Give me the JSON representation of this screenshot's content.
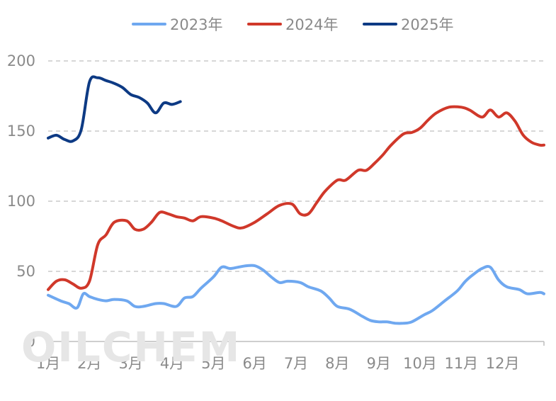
{
  "watermark": "OILCHEM",
  "chart_data": {
    "type": "line",
    "categories": [
      "1月",
      "2月",
      "3月",
      "4月",
      "5月",
      "6月",
      "7月",
      "8月",
      "9月",
      "10月",
      "11月",
      "12月"
    ],
    "ylim": [
      0,
      200
    ],
    "yticks": [
      0,
      50,
      100,
      150,
      200
    ],
    "ytick_labels": [
      "0",
      "50",
      "100",
      "150",
      "200"
    ],
    "grid": true,
    "legend_position": "top",
    "x_unit": "month (1 = early January, 13 = end of December)",
    "series": [
      {
        "name": "2023年",
        "color": "#6fa8f0",
        "x": [
          1.0,
          1.3,
          1.5,
          1.7,
          1.85,
          2.0,
          2.2,
          2.4,
          2.6,
          2.9,
          3.1,
          3.3,
          3.6,
          3.8,
          4.1,
          4.3,
          4.5,
          4.7,
          5.0,
          5.2,
          5.4,
          5.6,
          5.8,
          6.0,
          6.2,
          6.4,
          6.6,
          6.8,
          7.1,
          7.3,
          7.6,
          7.8,
          8.0,
          8.3,
          8.6,
          8.8,
          9.0,
          9.2,
          9.4,
          9.6,
          9.8,
          10.1,
          10.3,
          10.6,
          10.9,
          11.1,
          11.3,
          11.5,
          11.7,
          11.9,
          12.1,
          12.4,
          12.6,
          12.9,
          13.0
        ],
        "values": [
          33,
          29,
          27,
          24,
          34,
          32,
          30,
          29,
          30,
          29,
          25,
          25,
          27,
          27,
          25,
          31,
          32,
          38,
          46,
          53,
          52,
          53,
          54,
          54,
          51,
          46,
          42,
          43,
          42,
          39,
          36,
          31,
          25,
          23,
          18,
          15,
          14,
          14,
          13,
          13,
          14,
          19,
          22,
          29,
          36,
          43,
          48,
          52,
          53,
          44,
          39,
          37,
          34,
          35,
          34
        ]
      },
      {
        "name": "2024年",
        "color": "#d0382a",
        "x": [
          1.0,
          1.2,
          1.4,
          1.6,
          1.8,
          2.0,
          2.2,
          2.4,
          2.6,
          2.9,
          3.1,
          3.3,
          3.5,
          3.7,
          3.9,
          4.1,
          4.3,
          4.5,
          4.7,
          5.0,
          5.2,
          5.5,
          5.7,
          6.0,
          6.3,
          6.6,
          6.9,
          7.1,
          7.3,
          7.5,
          7.7,
          8.0,
          8.2,
          8.5,
          8.7,
          8.9,
          9.1,
          9.3,
          9.6,
          9.8,
          10.0,
          10.2,
          10.4,
          10.7,
          11.0,
          11.2,
          11.5,
          11.7,
          11.9,
          12.1,
          12.3,
          12.5,
          12.7,
          12.9,
          13.0
        ],
        "values": [
          37,
          43,
          44,
          41,
          38,
          43,
          69,
          76,
          85,
          86,
          80,
          80,
          85,
          92,
          91,
          89,
          88,
          86,
          89,
          88,
          86,
          82,
          81,
          85,
          91,
          97,
          98,
          91,
          91,
          99,
          107,
          115,
          115,
          122,
          122,
          127,
          133,
          140,
          148,
          149,
          152,
          158,
          163,
          167,
          167,
          165,
          160,
          165,
          160,
          163,
          157,
          147,
          142,
          140,
          140
        ]
      },
      {
        "name": "2025年",
        "color": "#0d3a84",
        "x": [
          1.0,
          1.2,
          1.4,
          1.6,
          1.8,
          2.0,
          2.2,
          2.4,
          2.6,
          2.8,
          3.0,
          3.2,
          3.4,
          3.6,
          3.8,
          4.0,
          4.2
        ],
        "values": [
          145,
          147,
          144,
          143,
          151,
          185,
          188,
          186,
          184,
          181,
          176,
          174,
          170,
          163,
          170,
          169,
          171
        ]
      }
    ]
  }
}
